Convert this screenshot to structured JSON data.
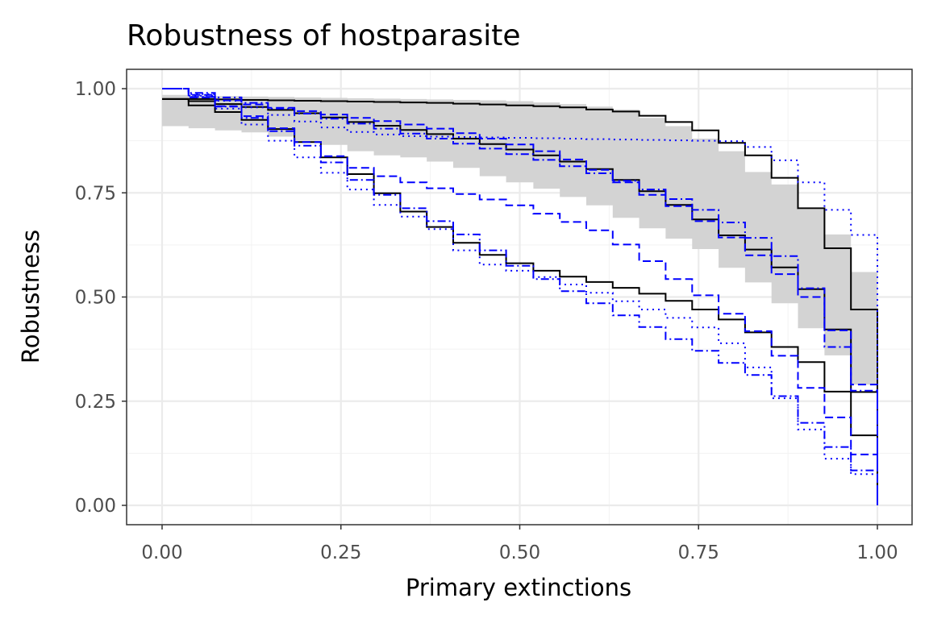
{
  "chart_data": {
    "type": "line",
    "title": "Robustness of hostparasite",
    "xlabel": "Primary extinctions",
    "ylabel": "Robustness",
    "xlim": [
      0,
      1
    ],
    "ylim": [
      0,
      1
    ],
    "x_ticks": [
      "0.00",
      "0.25",
      "0.50",
      "0.75",
      "1.00"
    ],
    "y_ticks": [
      "0.00",
      "0.25",
      "0.50",
      "0.75",
      "1.00"
    ],
    "x_tick_values": [
      0,
      0.25,
      0.5,
      0.75,
      1
    ],
    "y_tick_values": [
      0,
      0.25,
      0.5,
      0.75,
      1
    ],
    "grid": true,
    "legend": "none",
    "ribbon": {
      "color": "#d3d3d3",
      "x": [
        0,
        0.037,
        0.074,
        0.111,
        0.148,
        0.185,
        0.222,
        0.259,
        0.296,
        0.333,
        0.37,
        0.407,
        0.444,
        0.481,
        0.519,
        0.556,
        0.593,
        0.63,
        0.667,
        0.704,
        0.741,
        0.778,
        0.815,
        0.852,
        0.889,
        0.926,
        0.963,
        1.0
      ],
      "lower": [
        0.91,
        0.905,
        0.9,
        0.895,
        0.885,
        0.875,
        0.865,
        0.85,
        0.84,
        0.835,
        0.825,
        0.81,
        0.79,
        0.775,
        0.76,
        0.74,
        0.72,
        0.69,
        0.665,
        0.64,
        0.615,
        0.57,
        0.535,
        0.485,
        0.425,
        0.36,
        0.29,
        0.0
      ],
      "upper": [
        0.985,
        0.983,
        0.982,
        0.981,
        0.98,
        0.979,
        0.978,
        0.977,
        0.976,
        0.975,
        0.974,
        0.973,
        0.972,
        0.97,
        0.967,
        0.963,
        0.957,
        0.95,
        0.93,
        0.91,
        0.88,
        0.85,
        0.8,
        0.77,
        0.71,
        0.65,
        0.56,
        0.38
      ]
    },
    "x_steps": [
      0,
      0.037,
      0.074,
      0.111,
      0.148,
      0.185,
      0.222,
      0.259,
      0.296,
      0.333,
      0.37,
      0.407,
      0.444,
      0.481,
      0.519,
      0.556,
      0.593,
      0.63,
      0.667,
      0.704,
      0.741,
      0.778,
      0.815,
      0.852,
      0.889,
      0.926,
      0.963,
      1.0
    ],
    "series": [
      {
        "style": "solid",
        "color": "#000000",
        "values": [
          0.975,
          0.975,
          0.974,
          0.973,
          0.972,
          0.971,
          0.97,
          0.969,
          0.968,
          0.967,
          0.966,
          0.964,
          0.962,
          0.96,
          0.958,
          0.955,
          0.95,
          0.945,
          0.935,
          0.92,
          0.9,
          0.87,
          0.84,
          0.786,
          0.713,
          0.617,
          0.47,
          0.0
        ]
      },
      {
        "style": "solid",
        "color": "#000000",
        "values": [
          0.975,
          0.97,
          0.963,
          0.956,
          0.949,
          0.941,
          0.931,
          0.92,
          0.911,
          0.901,
          0.891,
          0.88,
          0.867,
          0.854,
          0.84,
          0.825,
          0.807,
          0.781,
          0.754,
          0.721,
          0.686,
          0.648,
          0.614,
          0.571,
          0.519,
          0.422,
          0.272,
          0.0
        ]
      },
      {
        "style": "solid",
        "color": "#000000",
        "values": [
          0.975,
          0.96,
          0.944,
          0.925,
          0.903,
          0.872,
          0.835,
          0.795,
          0.749,
          0.705,
          0.668,
          0.63,
          0.601,
          0.581,
          0.563,
          0.549,
          0.536,
          0.522,
          0.508,
          0.491,
          0.47,
          0.446,
          0.415,
          0.38,
          0.344,
          0.273,
          0.168,
          0.0
        ]
      },
      {
        "style": "dashed",
        "color": "#0000ff",
        "values": [
          1.0,
          0.985,
          0.972,
          0.962,
          0.954,
          0.946,
          0.938,
          0.93,
          0.922,
          0.914,
          0.904,
          0.893,
          0.88,
          0.866,
          0.85,
          0.83,
          0.805,
          0.775,
          0.745,
          0.718,
          0.682,
          0.643,
          0.6,
          0.555,
          0.5,
          0.42,
          0.29,
          0.0
        ]
      },
      {
        "style": "dashed",
        "color": "#0000ff",
        "values": [
          1.0,
          0.979,
          0.958,
          0.934,
          0.905,
          0.872,
          0.838,
          0.81,
          0.79,
          0.775,
          0.761,
          0.747,
          0.734,
          0.72,
          0.7,
          0.68,
          0.66,
          0.626,
          0.586,
          0.543,
          0.504,
          0.46,
          0.418,
          0.359,
          0.282,
          0.211,
          0.122,
          0.0
        ]
      },
      {
        "style": "dotdash",
        "color": "#0000ff",
        "values": [
          1.0,
          0.99,
          0.979,
          0.966,
          0.952,
          0.94,
          0.928,
          0.916,
          0.904,
          0.892,
          0.88,
          0.868,
          0.856,
          0.843,
          0.829,
          0.814,
          0.797,
          0.779,
          0.758,
          0.735,
          0.709,
          0.679,
          0.642,
          0.598,
          0.521,
          0.38,
          0.275,
          0.0
        ]
      },
      {
        "style": "dotdash",
        "color": "#0000ff",
        "values": [
          1.0,
          0.98,
          0.957,
          0.93,
          0.898,
          0.863,
          0.823,
          0.781,
          0.745,
          0.713,
          0.682,
          0.65,
          0.612,
          0.575,
          0.543,
          0.514,
          0.485,
          0.456,
          0.428,
          0.399,
          0.371,
          0.342,
          0.313,
          0.262,
          0.198,
          0.14,
          0.084,
          0.0
        ]
      },
      {
        "style": "dotted",
        "color": "#0000ff",
        "values": [
          1.0,
          0.983,
          0.952,
          0.914,
          0.875,
          0.835,
          0.798,
          0.758,
          0.721,
          0.693,
          0.663,
          0.612,
          0.578,
          0.563,
          0.548,
          0.53,
          0.51,
          0.49,
          0.47,
          0.45,
          0.427,
          0.389,
          0.331,
          0.257,
          0.182,
          0.112,
          0.075,
          0.0
        ]
      },
      {
        "style": "dotted",
        "color": "#0000ff",
        "values": [
          1.0,
          0.987,
          0.971,
          0.955,
          0.937,
          0.921,
          0.907,
          0.896,
          0.89,
          0.886,
          0.885,
          0.884,
          0.883,
          0.882,
          0.881,
          0.88,
          0.879,
          0.878,
          0.877,
          0.876,
          0.875,
          0.874,
          0.86,
          0.828,
          0.775,
          0.709,
          0.649,
          0.0
        ]
      }
    ]
  }
}
